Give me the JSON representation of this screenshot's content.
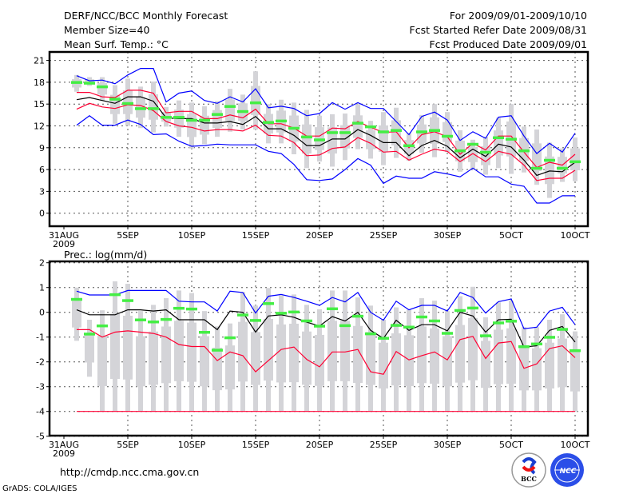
{
  "header": {
    "title": "DERF/NCC/BCC Monthly Forecast",
    "member_size": "Member Size=40",
    "variable": "Mean Surf. Temp.: °C",
    "period": "For 2009/09/01-2009/10/10",
    "started": "Fcst Started Refer Date 2009/08/31",
    "produced": "Fcst Produced Date 2009/09/01"
  },
  "footer": {
    "url": "http://cmdp.ncc.cma.gov.cn",
    "credit": "GrADS: COLA/IGES",
    "logo_bcc": "BCC",
    "logo_ncc": "NCC"
  },
  "colors": {
    "max_min": "#0000ff",
    "spread": "#ff0033",
    "mean": "#000000",
    "obs": "#44ee44",
    "box": "#d4d4d8",
    "grid": "#555555"
  },
  "chart_data": [
    {
      "type": "line",
      "title": "Mean Surf. Temp.: °C",
      "x_tick_labels": [
        "31AUG",
        "5SEP",
        "10SEP",
        "15SEP",
        "20SEP",
        "25SEP",
        "30SEP",
        "5OCT",
        "10OCT"
      ],
      "x_year_label": "2009",
      "x_tick_days": [
        0,
        5,
        10,
        15,
        20,
        25,
        30,
        35,
        40
      ],
      "y_ticks": [
        "0",
        "3",
        "6",
        "9",
        "12",
        "15",
        "18",
        "21"
      ],
      "ylim": [
        -2,
        22.4
      ],
      "grid": true,
      "days": [
        1,
        2,
        3,
        4,
        5,
        6,
        7,
        8,
        9,
        10,
        11,
        12,
        13,
        14,
        15,
        16,
        17,
        18,
        19,
        20,
        21,
        22,
        23,
        24,
        25,
        26,
        27,
        28,
        29,
        30,
        31,
        32,
        33,
        34,
        35,
        36,
        37,
        38,
        39,
        40
      ],
      "series": [
        {
          "name": "max",
          "color_key": "max_min",
          "values": [
            18.9,
            18.2,
            18.3,
            17.8,
            19.0,
            19.9,
            19.9,
            15.3,
            16.5,
            16.8,
            15.5,
            15.1,
            16.0,
            15.3,
            17.1,
            14.5,
            14.7,
            14.4,
            13.4,
            13.7,
            15.2,
            14.3,
            15.2,
            14.4,
            14.4,
            12.6,
            10.8,
            13.3,
            13.9,
            12.8,
            10.0,
            11.2,
            10.3,
            13.2,
            13.4,
            10.6,
            8.2,
            9.6,
            8.4,
            11.0
          ]
        },
        {
          "name": "upper",
          "color_key": "spread",
          "values": [
            16.6,
            16.6,
            16.0,
            15.9,
            16.9,
            16.9,
            16.5,
            13.8,
            14.0,
            14.0,
            13.0,
            13.0,
            13.5,
            13.1,
            14.3,
            12.3,
            12.3,
            11.7,
            10.6,
            10.6,
            11.7,
            11.6,
            12.6,
            11.8,
            11.1,
            11.2,
            9.0,
            10.8,
            11.2,
            10.5,
            8.1,
            9.6,
            8.7,
            10.6,
            10.6,
            8.4,
            6.3,
            7.0,
            6.6,
            8.1
          ]
        },
        {
          "name": "mean",
          "color_key": "mean",
          "values": [
            15.6,
            15.9,
            15.5,
            15.1,
            16.0,
            16.0,
            15.4,
            13.1,
            13.0,
            13.0,
            12.4,
            12.4,
            12.6,
            12.2,
            13.3,
            11.6,
            11.6,
            10.7,
            9.3,
            9.3,
            10.2,
            10.2,
            11.5,
            10.7,
            9.7,
            9.7,
            7.9,
            9.3,
            10.0,
            9.2,
            7.6,
            8.8,
            7.8,
            9.5,
            9.1,
            7.3,
            5.2,
            5.8,
            5.7,
            7.0
          ]
        },
        {
          "name": "lower",
          "color_key": "spread",
          "values": [
            14.3,
            15.1,
            14.6,
            14.4,
            14.9,
            14.8,
            14.1,
            12.6,
            12.0,
            11.8,
            11.3,
            11.5,
            11.5,
            11.3,
            12.1,
            10.7,
            10.6,
            9.7,
            7.9,
            8.0,
            8.9,
            9.1,
            10.4,
            9.6,
            8.4,
            8.5,
            7.3,
            8.1,
            8.8,
            8.5,
            7.1,
            8.2,
            7.1,
            8.5,
            8.1,
            6.6,
            4.5,
            4.8,
            4.8,
            5.9
          ]
        },
        {
          "name": "min",
          "color_key": "max_min",
          "values": [
            12.1,
            13.4,
            12.1,
            12.1,
            12.8,
            12.2,
            10.8,
            10.9,
            9.9,
            9.2,
            9.3,
            9.5,
            9.4,
            9.4,
            9.4,
            8.5,
            8.2,
            6.7,
            4.6,
            4.5,
            4.7,
            6.0,
            7.5,
            6.6,
            4.1,
            5.1,
            4.8,
            4.8,
            5.7,
            5.4,
            5.0,
            6.2,
            5.0,
            5.0,
            4.0,
            3.7,
            1.4,
            1.4,
            2.4,
            2.4
          ]
        }
      ],
      "obs": [
        18.0,
        17.9,
        17.4,
        15.7,
        15.1,
        14.4,
        14.4,
        13.2,
        13.2,
        12.8,
        12.8,
        13.6,
        14.7,
        14.0,
        15.2,
        12.5,
        12.7,
        11.7,
        10.5,
        10.1,
        11.1,
        11.1,
        12.4,
        11.9,
        11.2,
        11.4,
        9.3,
        11.2,
        11.4,
        10.6,
        8.6,
        9.5,
        8.4,
        10.4,
        10.2,
        8.6,
        6.2,
        7.3,
        6.2,
        7.1
      ],
      "range_low": [
        16.7,
        17.5,
        15.5,
        12.3,
        12.0,
        11.7,
        11.1,
        11.9,
        10.5,
        8.9,
        9.5,
        10.5,
        11.2,
        11.5,
        11.5,
        9.6,
        9.6,
        8.1,
        6.2,
        7.1,
        6.4,
        7.3,
        8.8,
        7.5,
        6.6,
        7.6,
        7.2,
        8.3,
        7.7,
        8.4,
        5.7,
        6.0,
        5.3,
        6.2,
        5.4,
        5.6,
        3.9,
        2.1,
        4.3,
        4.4
      ],
      "range_high": [
        19.0,
        18.7,
        18.7,
        17.6,
        18.5,
        17.4,
        18.1,
        14.6,
        15.5,
        15.2,
        14.7,
        15.4,
        17.1,
        16.3,
        19.5,
        15.0,
        15.6,
        15.2,
        14.2,
        13.4,
        13.6,
        13.7,
        15.0,
        12.7,
        13.9,
        14.5,
        11.0,
        13.5,
        15.0,
        13.9,
        11.4,
        10.1,
        10.5,
        13.1,
        15.0,
        11.9,
        11.5,
        9.7,
        8.9,
        10.4
      ]
    },
    {
      "type": "line",
      "title": "Prec.: log(mm/d)",
      "x_tick_labels": [
        "31AUG",
        "5SEP",
        "10SEP",
        "15SEP",
        "20SEP",
        "25SEP",
        "30SEP",
        "5OCT",
        "10OCT"
      ],
      "x_year_label": "2009",
      "x_tick_days": [
        0,
        5,
        10,
        15,
        20,
        25,
        30,
        35,
        40
      ],
      "y_ticks": [
        "-5",
        "-4",
        "-3",
        "-2",
        "-1",
        "0",
        "1",
        "2"
      ],
      "ylim": [
        -5,
        2
      ],
      "grid": true,
      "days": [
        1,
        2,
        3,
        4,
        5,
        6,
        7,
        8,
        9,
        10,
        11,
        12,
        13,
        14,
        15,
        16,
        17,
        18,
        19,
        20,
        21,
        22,
        23,
        24,
        25,
        26,
        27,
        28,
        29,
        30,
        31,
        32,
        33,
        34,
        35,
        36,
        37,
        38,
        39,
        40
      ],
      "series": [
        {
          "name": "max",
          "color_key": "max_min",
          "values": [
            0.85,
            0.7,
            0.7,
            0.7,
            0.88,
            0.88,
            0.88,
            0.88,
            0.45,
            0.42,
            0.42,
            0.05,
            0.85,
            0.8,
            -0.03,
            0.65,
            0.72,
            0.6,
            0.45,
            0.28,
            0.6,
            0.42,
            0.8,
            0.0,
            -0.32,
            0.45,
            0.1,
            0.28,
            0.28,
            0.05,
            0.8,
            0.6,
            -0.03,
            0.43,
            0.54,
            -0.66,
            -0.6,
            0.05,
            0.2,
            -0.5
          ]
        },
        {
          "name": "mean",
          "color_key": "mean",
          "values": [
            0.1,
            -0.1,
            -0.1,
            -0.1,
            0.1,
            0.1,
            0.05,
            0.1,
            -0.3,
            -0.3,
            -0.3,
            -0.7,
            0.05,
            0.0,
            -0.8,
            -0.15,
            -0.1,
            -0.2,
            -0.4,
            -0.55,
            -0.17,
            -0.35,
            0.0,
            -0.73,
            -1.05,
            -0.32,
            -0.73,
            -0.5,
            -0.5,
            -0.75,
            0.0,
            -0.15,
            -0.8,
            -0.3,
            -0.28,
            -1.4,
            -1.35,
            -0.73,
            -0.57,
            -1.2
          ]
        },
        {
          "name": "lower",
          "color_key": "spread",
          "values": [
            -0.7,
            -0.7,
            -1.0,
            -0.8,
            -0.75,
            -0.8,
            -0.85,
            -1.0,
            -1.3,
            -1.38,
            -1.38,
            -1.95,
            -1.6,
            -1.75,
            -2.4,
            -1.95,
            -1.5,
            -1.4,
            -1.9,
            -2.2,
            -1.6,
            -1.6,
            -1.5,
            -2.4,
            -2.5,
            -1.58,
            -1.92,
            -1.75,
            -1.6,
            -1.92,
            -1.1,
            -0.97,
            -1.86,
            -1.24,
            -1.18,
            -2.26,
            -2.08,
            -1.46,
            -1.35,
            -1.83
          ]
        },
        {
          "name": "min",
          "color_key": "spread",
          "values": [
            -4,
            -4,
            -4,
            -4,
            -4,
            -4,
            -4,
            -4,
            -4,
            -4,
            -4,
            -4,
            -4,
            -4,
            -4,
            -4,
            -4,
            -4,
            -4,
            -4,
            -4,
            -4,
            -4,
            -4,
            -4,
            -4,
            -4,
            -4,
            -4,
            -4,
            -4,
            -4,
            -4,
            -4,
            -4,
            -4,
            -4,
            -4,
            -4,
            -4
          ]
        }
      ],
      "obs": [
        0.53,
        -0.87,
        -0.54,
        0.72,
        0.48,
        -0.3,
        -0.38,
        -0.28,
        0.17,
        0.14,
        -0.8,
        -1.52,
        -1.02,
        -0.1,
        -0.32,
        0.36,
        -0.03,
        0.02,
        -0.34,
        -0.55,
        0.15,
        -0.53,
        -0.15,
        -0.86,
        -1.04,
        -0.52,
        -0.59,
        -0.18,
        -0.34,
        -0.84,
        0.08,
        0.18,
        -0.94,
        -0.42,
        -0.35,
        -1.38,
        -1.27,
        -1.0,
        -0.68,
        -1.54
      ],
      "range_low": [
        -1.15,
        -2.6,
        -4,
        -4,
        -4,
        -4,
        -4,
        -4,
        -4,
        -4,
        -4,
        -4,
        -4,
        -4,
        -4,
        -4,
        -4,
        -4,
        -4,
        -4,
        -4,
        -4,
        -4,
        -4,
        -4,
        -4,
        -4,
        -4,
        -4,
        -4,
        -4,
        -4,
        -4,
        -4,
        -4,
        -4,
        -4,
        -4,
        -4,
        -4
      ],
      "range_high": [
        1.0,
        -0.3,
        0.08,
        1.25,
        1.15,
        0.05,
        0.3,
        0.57,
        0.88,
        0.78,
        0.05,
        -0.57,
        -0.45,
        0.82,
        0.27,
        0.98,
        0.68,
        0.72,
        0.3,
        0.12,
        0.88,
        0.88,
        0.6,
        0.27,
        -0.3,
        0.2,
        0.1,
        0.57,
        0.47,
        0.05,
        0.65,
        1.03,
        -0.2,
        0.4,
        0.47,
        -0.6,
        -0.6,
        -0.3,
        -0.08,
        -0.77
      ]
    }
  ]
}
